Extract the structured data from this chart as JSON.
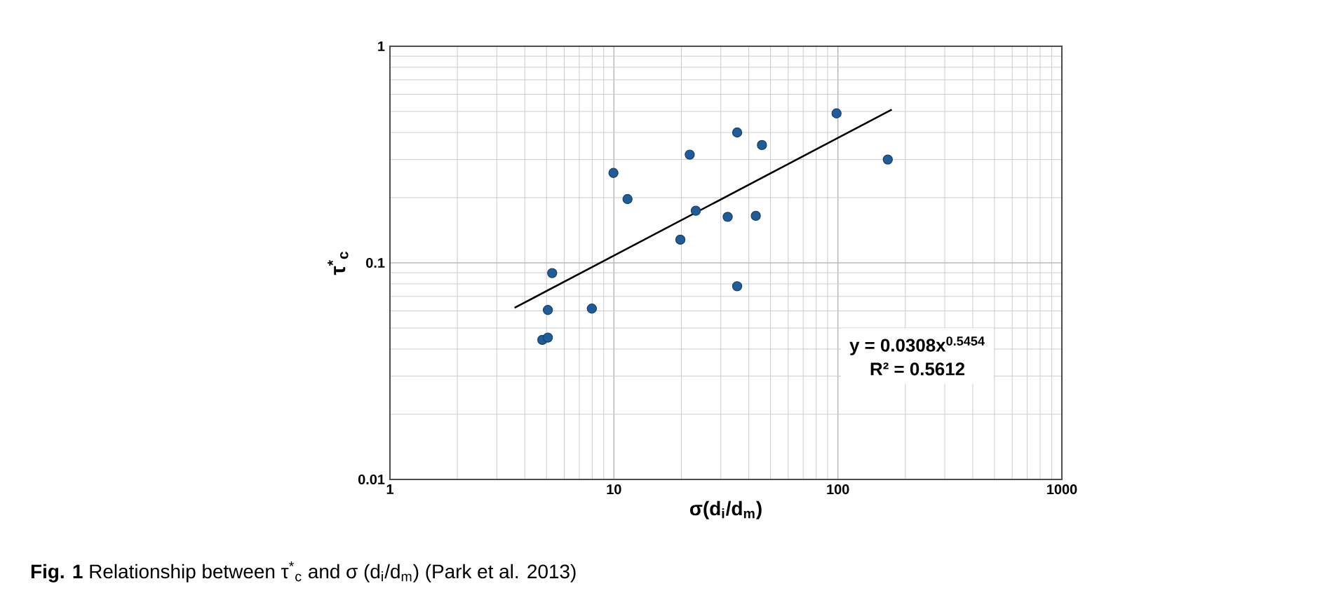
{
  "chart_data": {
    "type": "scatter",
    "xlabel": "σ(d$_{i}$/d$_{m}$)",
    "ylabel": "τ$^{*}$$_{c}$",
    "log": "xy",
    "grid": true,
    "xlim": [
      1,
      1000
    ],
    "ylim": [
      0.01,
      1
    ],
    "xticks": [
      1,
      10,
      100,
      1000
    ],
    "yticks": [
      0.01,
      0.1,
      1
    ],
    "annotations": [
      "y = 0.0308x$^{0.5454}$",
      "R² = 0.5612",
      "**Fig. 1**  Relationship between τ$^{*}$$_{c}$ and σ (d$_{i}$/d$_{m}$) (Park et al. 2013)"
    ],
    "series": [
      {
        "marker": "circle",
        "color": "#1f5c99",
        "x": [
          98.6,
          35.5,
          45.8,
          21.8,
          167,
          9.95,
          11.5,
          23.2,
          32.2,
          43.0,
          19.8,
          5.3,
          35.5,
          5.07,
          7.97,
          4.79,
          5.07
        ],
        "values": [
          0.49,
          0.4,
          0.35,
          0.316,
          0.3,
          0.26,
          0.197,
          0.174,
          0.163,
          0.165,
          0.128,
          0.0897,
          0.078,
          0.0606,
          0.0615,
          0.0441,
          0.0452
        ]
      },
      {
        "type": "line",
        "marker": "none",
        "color": "#000000",
        "x": [
          3.6,
          174
        ],
        "values": [
          0.062,
          0.51
        ]
      }
    ]
  }
}
